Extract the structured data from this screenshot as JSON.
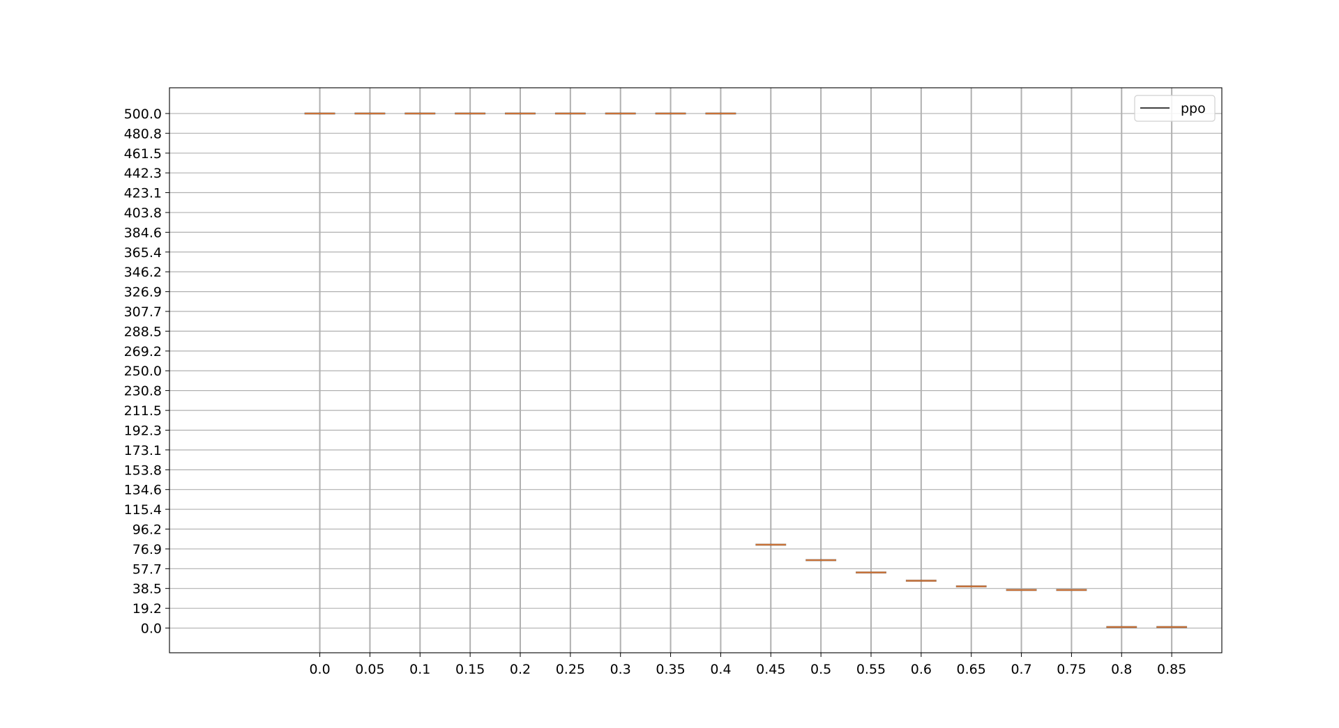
{
  "chart_data": {
    "type": "box",
    "categories": [
      "0.0",
      "0.05",
      "0.1",
      "0.15",
      "0.2",
      "0.25",
      "0.3",
      "0.35",
      "0.4",
      "0.45",
      "0.5",
      "0.55",
      "0.6",
      "0.65",
      "0.7",
      "0.75",
      "0.8",
      "0.85"
    ],
    "series": [
      {
        "name": "ppo",
        "values": [
          500.0,
          500.0,
          500.0,
          500.0,
          500.0,
          500.0,
          500.0,
          500.0,
          500.0,
          81.0,
          66.0,
          54.0,
          46.0,
          40.5,
          37.0,
          37.0,
          1.0,
          1.0
        ]
      }
    ],
    "yticks": [
      "0.0",
      "19.2",
      "38.5",
      "57.7",
      "76.9",
      "96.2",
      "115.4",
      "134.6",
      "153.8",
      "173.1",
      "192.3",
      "211.5",
      "230.8",
      "250.0",
      "269.2",
      "288.5",
      "307.7",
      "326.9",
      "346.2",
      "365.4",
      "384.6",
      "403.8",
      "423.1",
      "442.3",
      "461.5",
      "480.8",
      "500.0"
    ],
    "ylim": [
      -24,
      525
    ],
    "xlim": [
      -2,
      19
    ],
    "grid": true,
    "legend_position": "top-right",
    "colors": {
      "median": "#c87137",
      "box": "#000000",
      "grid": "#b0b0b0",
      "legend_line": "#000000"
    },
    "xlabel": "",
    "ylabel": "",
    "title": ""
  }
}
